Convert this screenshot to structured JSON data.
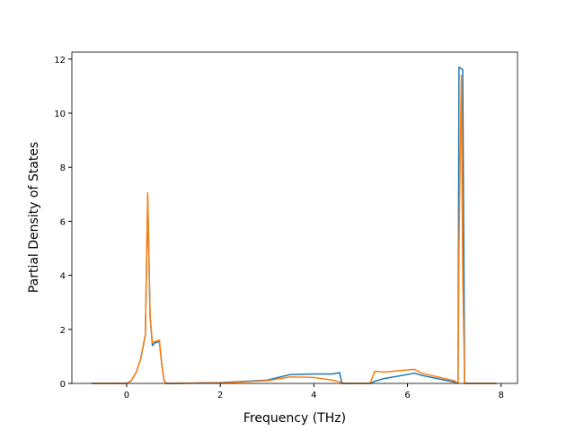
{
  "chart_data": {
    "type": "line",
    "xlabel": "Frequency (THz)",
    "ylabel": "Partial Density of States",
    "x": [
      -0.75,
      0,
      0.1,
      0.2,
      0.3,
      0.4,
      0.45,
      0.5,
      0.55,
      0.6,
      0.7,
      0.75,
      0.8,
      0.85,
      1.0,
      2.0,
      3.0,
      3.5,
      4.0,
      4.4,
      4.55,
      4.6,
      5.2,
      5.3,
      5.5,
      6.0,
      6.15,
      6.3,
      7.0,
      7.08,
      7.1,
      7.15,
      7.18,
      7.22,
      7.9
    ],
    "series": [
      {
        "color": "#1f77b4",
        "values": [
          0,
          0,
          0.1,
          0.4,
          0.9,
          1.8,
          6.9,
          2.5,
          1.4,
          1.5,
          1.55,
          0.7,
          0.1,
          0,
          0,
          0.03,
          0.12,
          0.33,
          0.35,
          0.35,
          0.4,
          0,
          0,
          0.08,
          0.18,
          0.33,
          0.38,
          0.3,
          0.05,
          0,
          11.7,
          11.65,
          11.6,
          0,
          0
        ]
      },
      {
        "color": "#ff7f0e",
        "values": [
          0,
          0,
          0.1,
          0.4,
          0.9,
          1.8,
          7.05,
          2.5,
          1.5,
          1.55,
          1.6,
          0.7,
          0.1,
          0,
          0,
          0.02,
          0.1,
          0.24,
          0.22,
          0.12,
          0.06,
          0,
          0,
          0.45,
          0.42,
          0.5,
          0.52,
          0.38,
          0.1,
          0,
          5,
          11.4,
          4,
          0,
          0
        ]
      }
    ],
    "xlim": [
      -1.17,
      8.35
    ],
    "ylim": [
      0,
      12.26
    ],
    "xticks": [
      0,
      2,
      4,
      6,
      8
    ],
    "yticks": [
      0,
      2,
      4,
      6,
      8,
      10,
      12
    ]
  }
}
